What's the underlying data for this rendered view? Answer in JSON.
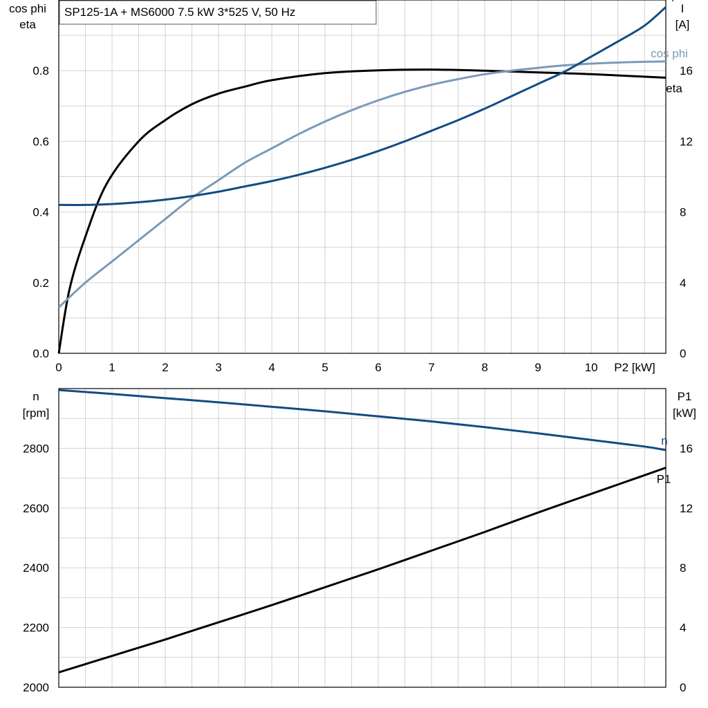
{
  "chart_data": [
    {
      "type": "line",
      "title": "SP125-1A + MS6000   7.5 kW   3*525 V, 50 Hz",
      "xlabel": "P2 [kW]",
      "ylabel_left": [
        "cos phi",
        "eta"
      ],
      "ylabel_right": [
        "I",
        "[A]"
      ],
      "xlim": [
        0,
        11.4
      ],
      "ylim_left": [
        0,
        1.0
      ],
      "ylim_right": [
        0,
        20
      ],
      "x_ticks": [
        "0",
        "1",
        "2",
        "3",
        "4",
        "5",
        "6",
        "7",
        "8",
        "9",
        "10"
      ],
      "y_ticks_left": [
        "0.0",
        "0.2",
        "0.4",
        "0.6",
        "0.8"
      ],
      "y_ticks_right": [
        "0",
        "4",
        "8",
        "12",
        "16"
      ],
      "grid": true,
      "series": [
        {
          "name": "eta",
          "axis": "left",
          "color": "#000000",
          "x": [
            0,
            0.2,
            0.5,
            0.9,
            1.5,
            2.0,
            2.5,
            3,
            3.5,
            4,
            5,
            6,
            7,
            8,
            9,
            10,
            11.4
          ],
          "y": [
            0,
            0.18,
            0.33,
            0.48,
            0.6,
            0.66,
            0.705,
            0.735,
            0.755,
            0.773,
            0.793,
            0.801,
            0.803,
            0.8,
            0.795,
            0.79,
            0.78
          ]
        },
        {
          "name": "cos phi",
          "axis": "left",
          "color": "#7a9ab8",
          "x": [
            0,
            0.5,
            1,
            1.5,
            2,
            2.5,
            3,
            3.5,
            4,
            4.5,
            5,
            5.5,
            6,
            6.5,
            7,
            7.5,
            8,
            8.5,
            9,
            9.5,
            10,
            10.5,
            11,
            11.4
          ],
          "y": [
            0.13,
            0.2,
            0.26,
            0.32,
            0.38,
            0.44,
            0.49,
            0.54,
            0.58,
            0.62,
            0.656,
            0.688,
            0.716,
            0.74,
            0.76,
            0.776,
            0.79,
            0.8,
            0.808,
            0.815,
            0.82,
            0.823,
            0.825,
            0.826
          ]
        },
        {
          "name": "I",
          "axis": "right",
          "color": "#124b82",
          "x": [
            0,
            0.5,
            1,
            1.5,
            2,
            2.5,
            3,
            3.5,
            4,
            4.5,
            5,
            5.5,
            6,
            6.5,
            7,
            7.5,
            8,
            8.5,
            9,
            9.5,
            10,
            10.5,
            11,
            11.4
          ],
          "y": [
            8.4,
            8.4,
            8.45,
            8.55,
            8.7,
            8.9,
            9.15,
            9.45,
            9.75,
            10.1,
            10.5,
            10.95,
            11.45,
            12.0,
            12.6,
            13.2,
            13.85,
            14.55,
            15.25,
            15.95,
            16.8,
            17.65,
            18.55,
            19.6
          ]
        }
      ]
    },
    {
      "type": "line",
      "xlabel": "",
      "ylabel_left": [
        "n",
        "[rpm]"
      ],
      "ylabel_right": [
        "P1",
        "[kW]"
      ],
      "xlim": [
        0,
        11.4
      ],
      "ylim_left": [
        2000,
        3000
      ],
      "ylim_right": [
        0,
        20
      ],
      "y_ticks_left": [
        "2000",
        "2200",
        "2400",
        "2600",
        "2800"
      ],
      "y_ticks_right": [
        "0",
        "4",
        "8",
        "12",
        "16"
      ],
      "grid": true,
      "series": [
        {
          "name": "n",
          "axis": "left",
          "color": "#124b82",
          "x": [
            0,
            1,
            2,
            3,
            4,
            5,
            6,
            7,
            8,
            9,
            10,
            11,
            11.4
          ],
          "y": [
            2995,
            2982,
            2968,
            2954,
            2939,
            2924,
            2907,
            2890,
            2871,
            2850,
            2828,
            2806,
            2794
          ]
        },
        {
          "name": "P1",
          "axis": "right",
          "color": "#000000",
          "x": [
            0,
            1,
            2,
            3,
            4,
            5,
            6,
            7,
            8,
            9,
            10,
            11,
            11.4
          ],
          "y": [
            1.0,
            2.1,
            3.2,
            4.35,
            5.5,
            6.7,
            7.9,
            9.15,
            10.4,
            11.7,
            12.95,
            14.2,
            14.7
          ]
        }
      ]
    }
  ]
}
